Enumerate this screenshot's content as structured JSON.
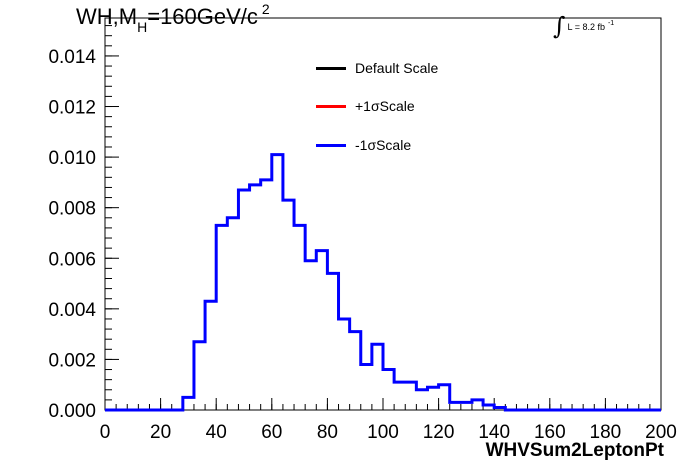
{
  "title": {
    "prefix": "WH,M",
    "sub": "H",
    "main": "=160GeV/c",
    "sup": "2"
  },
  "lumi": {
    "integral": "∫",
    "label": "L = 8.2 fb",
    "exponent": "-1"
  },
  "legend": {
    "items": [
      {
        "label": "Default Scale",
        "color": "#000000"
      },
      {
        "label": "+1σScale",
        "color": "#ff0000"
      },
      {
        "label": "-1σScale",
        "color": "#0000ff"
      }
    ]
  },
  "chart_data": {
    "type": "line",
    "xlabel": "WHVSum2LeptonPt",
    "ylabel": "",
    "xlim": [
      0,
      200
    ],
    "ylim": [
      0,
      0.0155
    ],
    "x_ticks": [
      "0",
      "20",
      "40",
      "60",
      "80",
      "100",
      "120",
      "140",
      "160",
      "180",
      "200"
    ],
    "y_ticks": [
      "0.000",
      "0.002",
      "0.004",
      "0.006",
      "0.008",
      "0.010",
      "0.012",
      "0.014"
    ],
    "bin_width": 4,
    "bin_edges_start": 0,
    "series": [
      {
        "name": "-1σScale",
        "color": "#0000ff",
        "values": [
          0,
          0,
          0,
          0,
          0,
          0,
          0,
          0.0005,
          0.0027,
          0.0043,
          0.0073,
          0.0076,
          0.0087,
          0.0089,
          0.0091,
          0.0101,
          0.0083,
          0.0073,
          0.0059,
          0.0063,
          0.0054,
          0.0036,
          0.0031,
          0.0018,
          0.0026,
          0.0016,
          0.0011,
          0.0011,
          0.0008,
          0.0009,
          0.001,
          0.0003,
          0.0003,
          0.0004,
          0.0002,
          0.0001,
          0,
          0,
          0,
          0,
          0,
          0,
          0,
          0,
          0,
          0,
          0,
          0,
          0,
          0
        ]
      }
    ]
  }
}
